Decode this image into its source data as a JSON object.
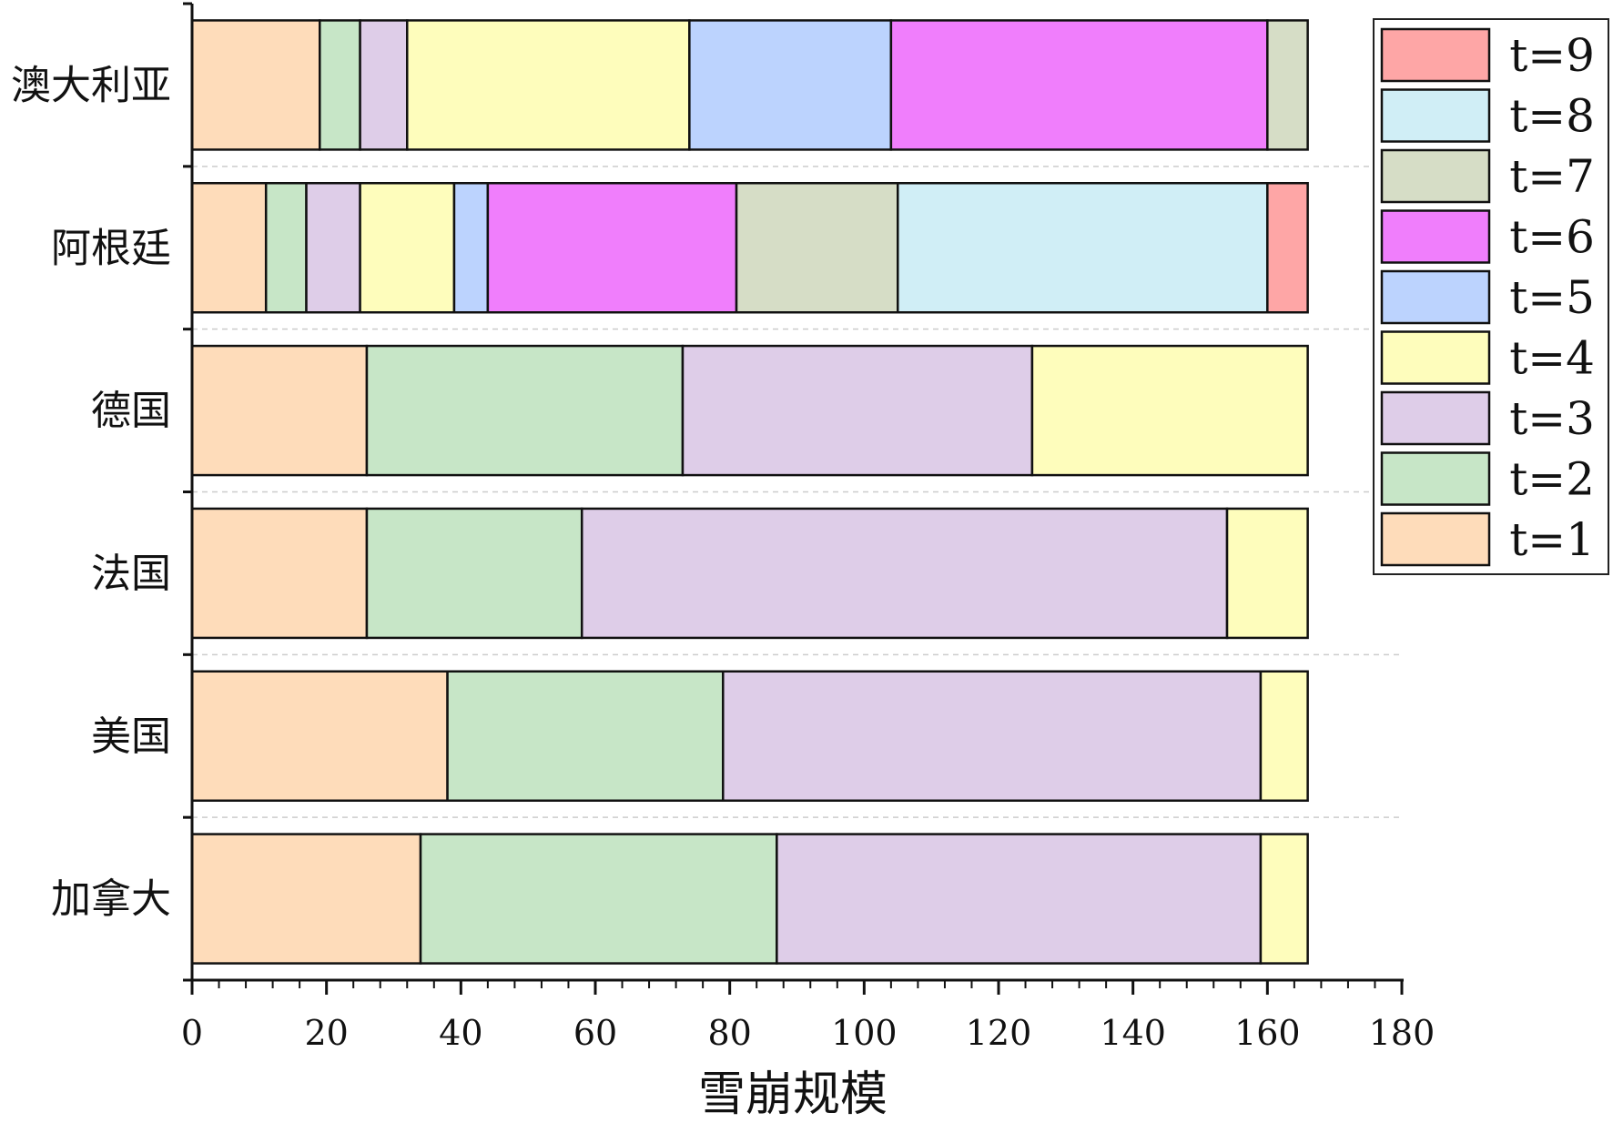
{
  "chart_data": {
    "type": "bar",
    "orientation": "horizontal",
    "stacked": true,
    "xlabel": "雪崩规模",
    "ylabel": "",
    "xlim": [
      0,
      180
    ],
    "xticks": [
      0,
      20,
      40,
      60,
      80,
      100,
      120,
      140,
      160,
      180
    ],
    "grid": "dashed horizontal separators between bars",
    "legend_position": "top-right",
    "categories": [
      "澳大利亚",
      "阿根廷",
      "德国",
      "法国",
      "美国",
      "加拿大"
    ],
    "series": [
      {
        "name": "t=1",
        "color": "#FEDCBA",
        "values": [
          19,
          11,
          26,
          26,
          38,
          34
        ]
      },
      {
        "name": "t=2",
        "color": "#C7E6C7",
        "values": [
          6,
          6,
          47,
          32,
          41,
          53
        ]
      },
      {
        "name": "t=3",
        "color": "#DECDE8",
        "values": [
          7,
          8,
          52,
          96,
          80,
          72
        ]
      },
      {
        "name": "t=4",
        "color": "#FEFDBC",
        "values": [
          42,
          14,
          41,
          12,
          7,
          7
        ]
      },
      {
        "name": "t=5",
        "color": "#BCD3FE",
        "values": [
          30,
          5,
          0,
          0,
          0,
          0
        ]
      },
      {
        "name": "t=6",
        "color": "#F07EFC",
        "values": [
          56,
          37,
          0,
          0,
          0,
          0
        ]
      },
      {
        "name": "t=7",
        "color": "#D6DDC6",
        "values": [
          6,
          24,
          0,
          0,
          0,
          0
        ]
      },
      {
        "name": "t=8",
        "color": "#D0EEF6",
        "values": [
          0,
          55,
          0,
          0,
          0,
          0
        ]
      },
      {
        "name": "t=9",
        "color": "#FEA6A6",
        "values": [
          0,
          6,
          0,
          0,
          0,
          0
        ]
      }
    ]
  }
}
